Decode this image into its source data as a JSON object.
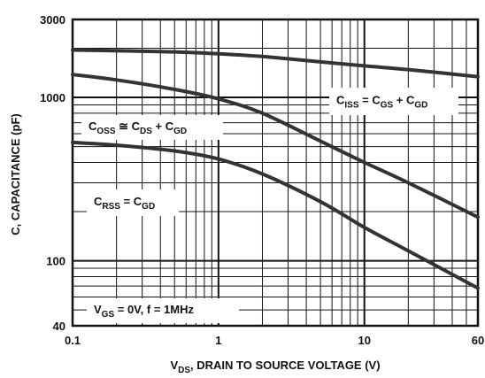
{
  "chart_data": {
    "type": "line",
    "xscale": "log",
    "yscale": "log",
    "xlim": [
      0.1,
      60
    ],
    "ylim": [
      40,
      3000
    ],
    "grid": true,
    "xlabel": {
      "prefix": "V",
      "sub": "DS",
      "rest": ", DRAIN TO SOURCE VOLTAGE (V)"
    },
    "ylabel": "C, CAPACITANCE (pF)",
    "x_ticks": [
      {
        "value": 0.1,
        "label": "0.1"
      },
      {
        "value": 1,
        "label": "1"
      },
      {
        "value": 10,
        "label": "10"
      },
      {
        "value": 60,
        "label": "60"
      }
    ],
    "y_ticks": [
      {
        "value": 3000,
        "label": "3000"
      },
      {
        "value": 1000,
        "label": "1000"
      },
      {
        "value": 100,
        "label": "100"
      },
      {
        "value": 40,
        "label": "40"
      }
    ],
    "series": [
      {
        "id": "ciss",
        "x": [
          0.1,
          0.2,
          0.5,
          1,
          2,
          5,
          10,
          20,
          60
        ],
        "y": [
          1950,
          1930,
          1900,
          1850,
          1780,
          1650,
          1560,
          1480,
          1340
        ]
      },
      {
        "id": "coss",
        "x": [
          0.1,
          0.2,
          0.5,
          1,
          2,
          5,
          10,
          20,
          60
        ],
        "y": [
          1380,
          1280,
          1120,
          980,
          800,
          540,
          400,
          300,
          185
        ]
      },
      {
        "id": "crss",
        "x": [
          0.1,
          0.2,
          0.5,
          1,
          2,
          5,
          10,
          20,
          60
        ],
        "y": [
          530,
          510,
          470,
          420,
          340,
          230,
          160,
          115,
          68
        ]
      }
    ],
    "annotations": [
      {
        "id": "ciss-label",
        "parts": [
          {
            "t": "C"
          },
          {
            "t": "ISS",
            "sub": true
          },
          {
            "t": " = C"
          },
          {
            "t": "GS",
            "sub": true
          },
          {
            "t": " + C"
          },
          {
            "t": "GD",
            "sub": true
          }
        ]
      },
      {
        "id": "coss-label",
        "parts": [
          {
            "t": "C"
          },
          {
            "t": "OSS",
            "sub": true
          },
          {
            "t": " ≅ C"
          },
          {
            "t": "DS",
            "sub": true
          },
          {
            "t": " + C"
          },
          {
            "t": "GD",
            "sub": true
          }
        ]
      },
      {
        "id": "crss-label",
        "parts": [
          {
            "t": "C"
          },
          {
            "t": "RSS",
            "sub": true
          },
          {
            "t": " = C"
          },
          {
            "t": "GD",
            "sub": true
          }
        ]
      },
      {
        "id": "condition-label",
        "parts": [
          {
            "t": "V"
          },
          {
            "t": "GS",
            "sub": true
          },
          {
            "t": " = 0V, f = 1MHz"
          }
        ]
      }
    ]
  }
}
